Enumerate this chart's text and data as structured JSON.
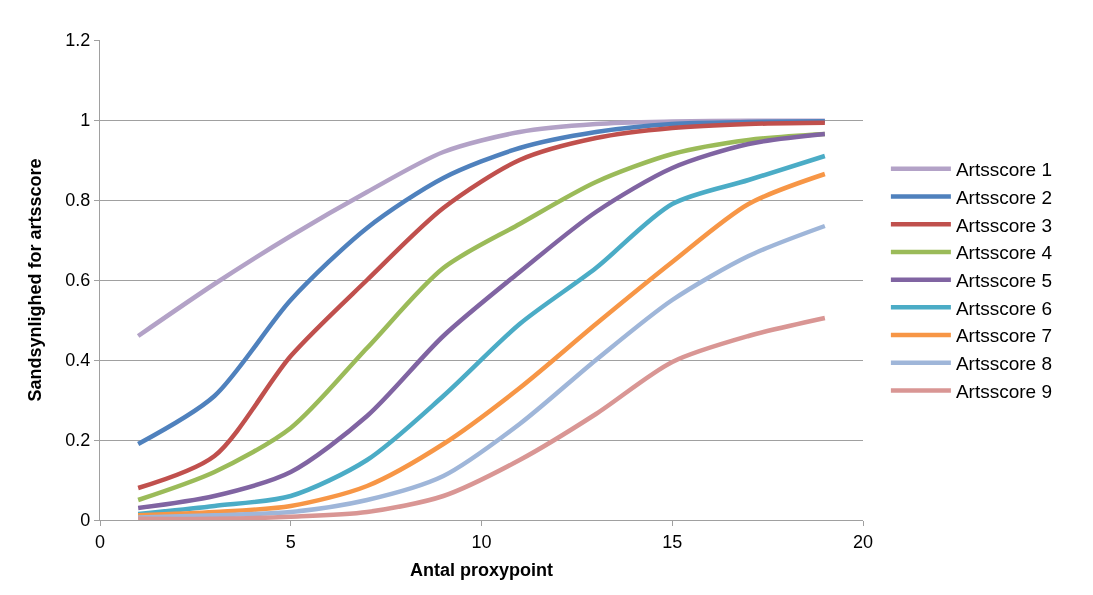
{
  "chart_data": {
    "type": "line",
    "xlabel": "Antal proxypoint",
    "ylabel": "Sandsynlighed for artsscore",
    "x": [
      1,
      3,
      5,
      7,
      9,
      11,
      13,
      15,
      17,
      19
    ],
    "xlim": [
      0,
      20
    ],
    "xticks": [
      0,
      5,
      10,
      15,
      20
    ],
    "ylim": [
      0,
      1.2
    ],
    "yticks": [
      0,
      0.2,
      0.4,
      0.6,
      0.8,
      1,
      1.2
    ],
    "grid": "y",
    "legend": "right",
    "marker": "none",
    "line_style": "solid",
    "series": [
      {
        "name": "Artsscore 1",
        "color": "#b3a2c7",
        "values": [
          0.46,
          0.59,
          0.71,
          0.82,
          0.92,
          0.97,
          0.99,
          0.996,
          0.998,
          0.998
        ]
      },
      {
        "name": "Artsscore 2",
        "color": "#4f81bd",
        "values": [
          0.19,
          0.31,
          0.55,
          0.73,
          0.855,
          0.93,
          0.97,
          0.99,
          0.995,
          0.997
        ]
      },
      {
        "name": "Artsscore 3",
        "color": "#c0504d",
        "values": [
          0.08,
          0.16,
          0.41,
          0.6,
          0.78,
          0.9,
          0.955,
          0.98,
          0.99,
          0.993
        ]
      },
      {
        "name": "Artsscore 4",
        "color": "#9bbb59",
        "values": [
          0.05,
          0.12,
          0.23,
          0.43,
          0.63,
          0.74,
          0.845,
          0.915,
          0.95,
          0.965
        ]
      },
      {
        "name": "Artsscore 5",
        "color": "#8064a2",
        "values": [
          0.03,
          0.06,
          0.12,
          0.26,
          0.46,
          0.62,
          0.77,
          0.88,
          0.94,
          0.965
        ]
      },
      {
        "name": "Artsscore 6",
        "color": "#4bacc6",
        "values": [
          0.015,
          0.035,
          0.06,
          0.15,
          0.31,
          0.49,
          0.63,
          0.79,
          0.85,
          0.91
        ]
      },
      {
        "name": "Artsscore 7",
        "color": "#f79646",
        "values": [
          0.012,
          0.02,
          0.035,
          0.085,
          0.19,
          0.33,
          0.49,
          0.645,
          0.79,
          0.865
        ]
      },
      {
        "name": "Artsscore 8",
        "color": "#9fb6d9",
        "values": [
          0.006,
          0.012,
          0.02,
          0.05,
          0.11,
          0.24,
          0.4,
          0.55,
          0.66,
          0.735
        ]
      },
      {
        "name": "Artsscore 9",
        "color": "#d99694",
        "values": [
          0.003,
          0.003,
          0.008,
          0.02,
          0.06,
          0.15,
          0.265,
          0.395,
          0.46,
          0.505
        ]
      }
    ]
  }
}
